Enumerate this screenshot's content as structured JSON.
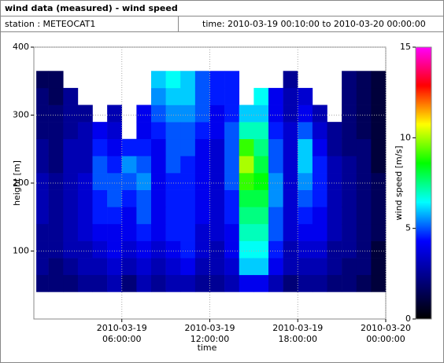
{
  "header": {
    "title": "wind data (measured) - wind speed",
    "station": "station : METEOCAT1",
    "time": "time: 2010-03-19 00:10:00 to 2010-03-20 00:00:00"
  },
  "chart_data": {
    "type": "heatmap",
    "xlabel": "time",
    "ylabel": "height [m]",
    "zlabel": "wind speed [m/s]",
    "xlim": [
      "2010-03-19 00:00:00",
      "2010-03-20 00:00:00"
    ],
    "xticks": [
      "2010-03-19 06:00:00",
      "2010-03-19 12:00:00",
      "2010-03-19 18:00:00",
      "2010-03-20 00:00:00"
    ],
    "ylim": [
      0,
      400
    ],
    "yticks": [
      100,
      200,
      300,
      400
    ],
    "zlim": [
      0,
      15
    ],
    "zticks": [
      0,
      5,
      10,
      15
    ],
    "grid": true,
    "colormap": [
      "#000000",
      "#00007f",
      "#0000ff",
      "#00ffff",
      "#00ff00",
      "#ffff00",
      "#ff0000",
      "#ff00ff"
    ],
    "x_edges": [
      "2010-03-19 00:10:00",
      "2010-03-19 01:00:00",
      "2010-03-19 02:00:00",
      "2010-03-19 03:00:00",
      "2010-03-19 04:00:00",
      "2010-03-19 05:00:00",
      "2010-03-19 06:00:00",
      "2010-03-19 07:00:00",
      "2010-03-19 08:00:00",
      "2010-03-19 09:00:00",
      "2010-03-19 10:00:00",
      "2010-03-19 11:00:00",
      "2010-03-19 12:00:00",
      "2010-03-19 13:00:00",
      "2010-03-19 14:00:00",
      "2010-03-19 15:00:00",
      "2010-03-19 16:00:00",
      "2010-03-19 17:00:00",
      "2010-03-19 18:00:00",
      "2010-03-19 19:00:00",
      "2010-03-19 20:00:00",
      "2010-03-19 21:00:00",
      "2010-03-19 22:00:00",
      "2010-03-19 23:00:00",
      "2010-03-20 00:00:00"
    ],
    "y_edges": [
      40,
      65,
      90,
      115,
      140,
      165,
      190,
      215,
      240,
      265,
      290,
      315,
      340,
      365
    ],
    "z": [
      [
        2,
        2.5,
        2.5,
        2.5,
        3,
        3,
        3,
        2.5,
        2.5,
        2,
        2,
        2,
        1.5
      ],
      [
        2,
        2,
        2.5,
        2.5,
        2.5,
        2.5,
        2.5,
        2,
        2,
        2,
        2,
        1.5,
        1.5
      ],
      [
        2,
        2.5,
        3,
        3,
        3,
        3,
        3,
        3,
        3,
        2.5,
        2.5,
        2.5,
        null
      ],
      [
        2.5,
        3,
        3,
        3.5,
        3.5,
        3.5,
        3.5,
        3,
        3,
        3,
        2.5,
        null,
        null
      ],
      [
        2.5,
        3,
        3.5,
        4,
        4.5,
        4.5,
        5,
        5,
        4.5,
        4,
        null,
        null,
        null
      ],
      [
        3,
        3.5,
        4,
        4,
        4.5,
        5,
        5,
        4.5,
        4,
        3.5,
        3,
        null,
        null
      ],
      [
        2,
        3,
        3.5,
        4,
        4,
        4.5,
        5,
        5.5,
        4.5,
        null,
        null,
        null,
        null
      ],
      [
        3,
        3.5,
        4,
        4.5,
        5,
        5,
        5.5,
        5,
        4.5,
        4,
        4,
        null,
        null
      ],
      [
        2.5,
        3,
        3.5,
        4,
        4,
        4,
        4,
        4,
        4,
        4.5,
        5,
        5.5,
        6
      ],
      [
        3,
        3.5,
        4,
        4.5,
        4.5,
        4.5,
        4.5,
        5,
        5,
        5,
        5.5,
        6,
        6.5
      ],
      [
        3,
        4,
        4.5,
        4.5,
        4.5,
        4.5,
        4.5,
        4.5,
        5,
        5,
        5.5,
        6,
        6
      ],
      [
        2.5,
        3,
        3.5,
        3.5,
        4,
        4,
        4,
        4,
        4,
        4.5,
        5,
        5,
        5
      ],
      [
        2.5,
        3,
        3,
        3.5,
        3.5,
        3.5,
        3.5,
        3.5,
        3.5,
        4,
        4,
        4.5,
        4.5
      ],
      [
        3,
        3.5,
        4,
        4,
        4.5,
        4.5,
        5,
        5,
        5,
        5,
        4.5,
        4.5,
        4.5
      ],
      [
        4,
        6,
        6.5,
        7,
        7.5,
        8,
        9,
        10,
        9,
        7,
        6,
        null,
        null
      ],
      [
        4,
        6,
        6.5,
        7,
        7.5,
        8,
        8.5,
        8,
        7.5,
        7,
        6,
        6.5,
        null
      ],
      [
        3,
        4,
        4.5,
        5,
        5,
        5.5,
        5.5,
        5,
        5,
        4.5,
        4,
        4,
        null
      ],
      [
        2,
        3,
        3,
        3.5,
        3.5,
        3.5,
        3.5,
        3.5,
        3.5,
        3.5,
        3,
        3,
        2.5
      ],
      [
        2.5,
        3,
        3.5,
        4,
        4.5,
        5,
        5.5,
        6,
        6,
        5,
        4,
        3.5,
        null
      ],
      [
        2.5,
        3,
        3.5,
        4,
        4,
        4.5,
        4.5,
        4.5,
        4,
        3.5,
        3,
        null,
        null
      ],
      [
        2,
        2.5,
        2.5,
        3,
        3,
        3,
        3,
        3,
        2.5,
        2.5,
        null,
        null,
        null
      ],
      [
        2,
        2,
        2.5,
        2.5,
        2.5,
        2.5,
        2.5,
        2.5,
        2,
        2,
        2,
        2,
        2
      ],
      [
        1.5,
        2,
        2,
        2,
        2,
        2,
        2,
        2,
        2,
        1.5,
        1.5,
        1.5,
        1.5
      ],
      [
        1,
        1,
        1,
        1.5,
        1.5,
        1.5,
        1.5,
        1,
        1,
        1,
        1,
        1,
        1
      ]
    ]
  }
}
